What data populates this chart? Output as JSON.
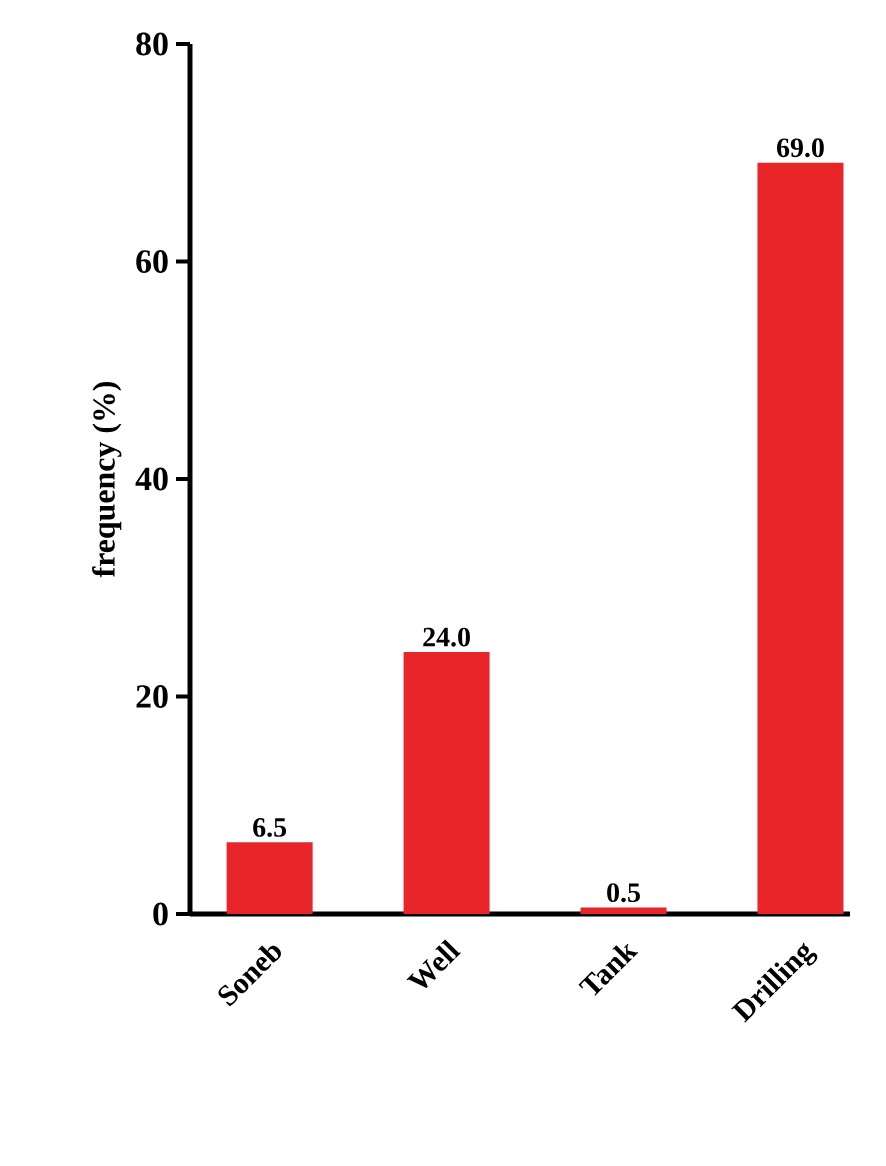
{
  "chart_data": {
    "type": "bar",
    "ylabel": "frequency (%)",
    "categories": [
      "Soneb",
      "Well",
      "Tank",
      "Drilling"
    ],
    "values": [
      6.5,
      24.0,
      0.5,
      69.0
    ],
    "value_labels": [
      "6.5",
      "24.0",
      "0.5",
      "69.0"
    ],
    "color": "#e8262a",
    "ylim": [
      0,
      80
    ],
    "yticks": [
      0,
      20,
      40,
      60,
      80
    ],
    "grid": false
  }
}
